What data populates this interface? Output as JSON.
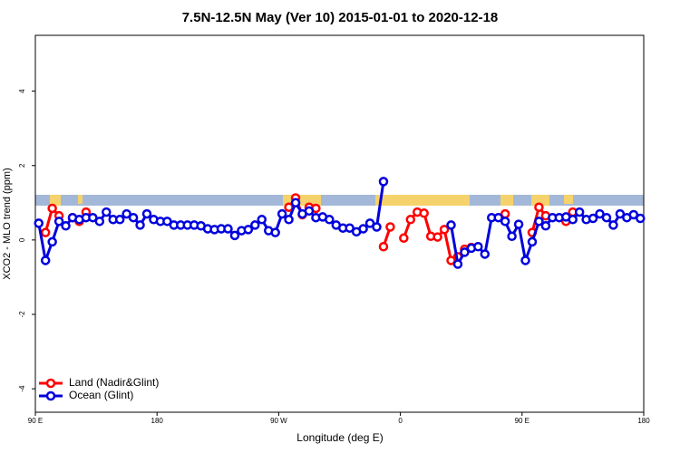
{
  "chart_data": {
    "type": "line",
    "title": "7.5N-12.5N May (Ver 10)   2015-01-01 to 2020-12-18",
    "x_label": "Longitude (deg E)",
    "y_label": "XCO2 - MLO trend (ppm)",
    "x": [
      92.5,
      97.5,
      102.5,
      107.5,
      112.5,
      117.5,
      122.5,
      127.5,
      132.5,
      137.5,
      142.5,
      147.5,
      152.5,
      157.5,
      162.5,
      167.5,
      172.5,
      177.5,
      182.5,
      187.5,
      192.5,
      197.5,
      202.5,
      207.5,
      212.5,
      217.5,
      222.5,
      227.5,
      232.5,
      237.5,
      242.5,
      247.5,
      252.5,
      257.5,
      262.5,
      267.5,
      272.5,
      277.5,
      282.5,
      287.5,
      292.5,
      297.5,
      302.5,
      307.5,
      312.5,
      317.5,
      322.5,
      327.5,
      332.5,
      337.5,
      342.5,
      347.5,
      352.5,
      357.5,
      362.5,
      367.5,
      372.5,
      377.5,
      382.5,
      387.5,
      392.5,
      397.5,
      402.5,
      407.5,
      412.5,
      417.5,
      422.5,
      427.5,
      432.5,
      437.5,
      442.5,
      447.5,
      452.5,
      457.5,
      462.5,
      467.5,
      472.5,
      477.5,
      482.5,
      487.5,
      492.5,
      497.5,
      502.5,
      507.5,
      512.5,
      517.5,
      522.5,
      527.5,
      532.5,
      537.5
    ],
    "series": [
      {
        "name": "Land (Nadir&Glint)",
        "color": "#ff0000",
        "values": [
          null,
          0.2,
          0.85,
          0.65,
          null,
          0.6,
          0.5,
          0.75,
          null,
          null,
          null,
          null,
          null,
          null,
          null,
          null,
          null,
          null,
          null,
          null,
          null,
          null,
          null,
          null,
          null,
          null,
          null,
          null,
          null,
          null,
          null,
          null,
          null,
          null,
          null,
          null,
          null,
          0.88,
          1.13,
          0.68,
          0.88,
          0.85,
          null,
          null,
          null,
          null,
          null,
          null,
          null,
          null,
          null,
          -0.18,
          0.35,
          null,
          0.05,
          0.55,
          0.75,
          0.72,
          0.1,
          0.08,
          0.28,
          -0.55,
          -0.45,
          -0.25,
          -0.2,
          null,
          null,
          null,
          null,
          0.7,
          null,
          null,
          null,
          0.2,
          0.88,
          0.65,
          null,
          null,
          0.5,
          0.75,
          null,
          null,
          null,
          null,
          null,
          null,
          null,
          null,
          null,
          null
        ]
      },
      {
        "name": "Ocean (Glint)",
        "color": "#0000dd",
        "values": [
          0.45,
          -0.55,
          -0.05,
          0.5,
          0.38,
          0.6,
          0.55,
          0.6,
          0.6,
          0.5,
          0.75,
          0.55,
          0.55,
          0.7,
          0.6,
          0.4,
          0.7,
          0.55,
          0.5,
          0.5,
          0.4,
          0.4,
          0.4,
          0.4,
          0.38,
          0.3,
          0.28,
          0.3,
          0.3,
          0.12,
          0.25,
          0.28,
          0.4,
          0.55,
          0.25,
          0.2,
          0.7,
          0.55,
          1.0,
          0.7,
          0.78,
          0.6,
          0.62,
          0.55,
          0.4,
          0.32,
          0.32,
          0.22,
          0.3,
          0.45,
          0.35,
          1.57,
          null,
          null,
          null,
          null,
          null,
          null,
          null,
          null,
          null,
          0.4,
          -0.65,
          -0.33,
          -0.22,
          -0.18,
          -0.38,
          0.6,
          0.6,
          0.5,
          0.1,
          0.42,
          -0.55,
          -0.05,
          0.5,
          0.38,
          0.6,
          0.6,
          0.62,
          0.55,
          0.75,
          0.55,
          0.58,
          0.7,
          0.6,
          0.4,
          0.7,
          0.6,
          0.68,
          0.58
        ]
      }
    ],
    "xlim": [
      90,
      540
    ],
    "xticks": [
      {
        "value": 90,
        "label": "90 E"
      },
      {
        "value": 180,
        "label": "180"
      },
      {
        "value": 270,
        "label": "90 W"
      },
      {
        "value": 360,
        "label": "0"
      },
      {
        "value": 450,
        "label": "90 E"
      },
      {
        "value": 540,
        "label": "180"
      }
    ],
    "ylim": [
      -4.63,
      5.5
    ],
    "yticks": [
      -4,
      -2,
      0,
      2,
      4
    ],
    "legend": "bottom-left"
  }
}
